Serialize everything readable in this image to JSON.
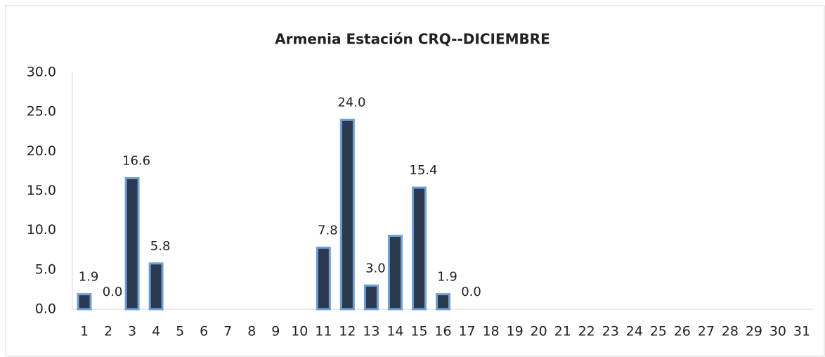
{
  "chart_data": {
    "type": "bar",
    "title": "Armenia Estación CRQ--DICIEMBRE",
    "categories": [
      "1",
      "2",
      "3",
      "4",
      "5",
      "6",
      "7",
      "8",
      "9",
      "10",
      "11",
      "12",
      "13",
      "14",
      "15",
      "16",
      "17",
      "18",
      "19",
      "20",
      "21",
      "22",
      "23",
      "24",
      "25",
      "26",
      "27",
      "28",
      "29",
      "30",
      "31"
    ],
    "values": [
      1.9,
      0.0,
      16.6,
      5.8,
      null,
      null,
      null,
      null,
      null,
      null,
      7.8,
      24.0,
      3.0,
      9.3,
      15.4,
      1.9,
      0.0,
      null,
      null,
      null,
      null,
      null,
      null,
      null,
      null,
      null,
      null,
      null,
      null,
      null,
      null
    ],
    "value_labels": [
      "1.9",
      "0.0",
      "16.6",
      "5.8",
      null,
      null,
      null,
      null,
      null,
      null,
      "7.8",
      "24.0",
      "3.0",
      null,
      "15.4",
      "1.9",
      "0.0",
      null,
      null,
      null,
      null,
      null,
      null,
      null,
      null,
      null,
      null,
      null,
      null,
      null,
      null
    ],
    "color": "#2b3a4e",
    "edge_color": "#6fa0d8",
    "ylim": [
      0,
      30
    ],
    "yticks": [
      {
        "value": 0,
        "label": "0.0"
      },
      {
        "value": 5,
        "label": "5.0"
      },
      {
        "value": 10,
        "label": "10.0"
      },
      {
        "value": 15,
        "label": "15.0"
      },
      {
        "value": 20,
        "label": "20.0"
      },
      {
        "value": 25,
        "label": "25.0"
      },
      {
        "value": 30,
        "label": "30.0"
      }
    ],
    "grid": false
  }
}
